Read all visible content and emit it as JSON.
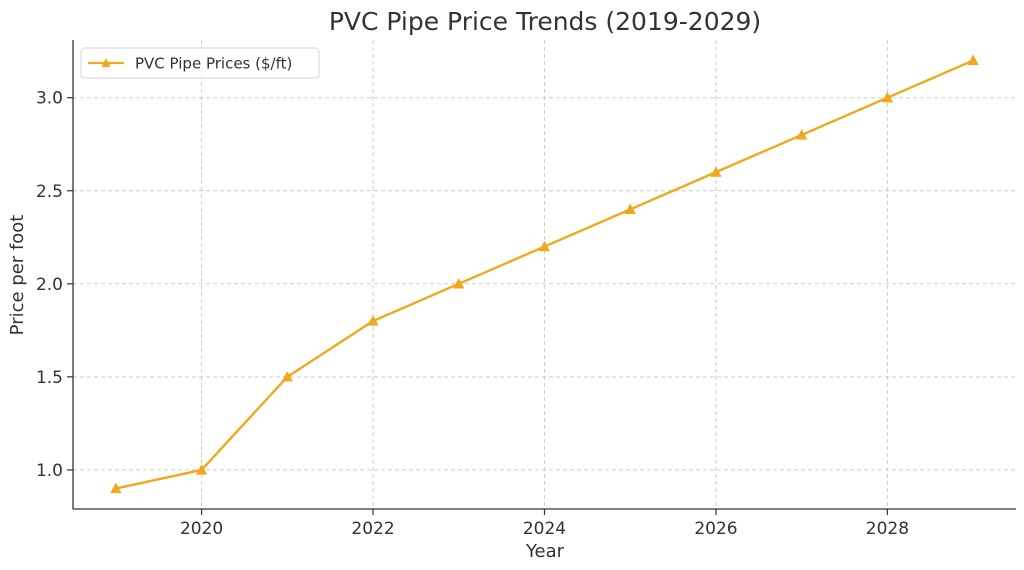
{
  "chart_data": {
    "type": "line",
    "title": "PVC Pipe Price Trends (2019-2029)",
    "xlabel": "Year",
    "ylabel": "Price per foot",
    "x": [
      2019,
      2020,
      2021,
      2022,
      2023,
      2024,
      2025,
      2026,
      2027,
      2028,
      2029
    ],
    "series": [
      {
        "name": "PVC Pipe Prices ($/ft)",
        "values": [
          0.9,
          1.0,
          1.5,
          1.8,
          2.0,
          2.2,
          2.4,
          2.6,
          2.8,
          3.0,
          3.2
        ],
        "color": "#f0a81c",
        "marker": "triangle-up"
      }
    ],
    "xticks": [
      2020,
      2022,
      2024,
      2026,
      2028
    ],
    "yticks": [
      1.0,
      1.5,
      2.0,
      2.5,
      3.0
    ],
    "ytick_labels": [
      "1.0",
      "1.5",
      "2.0",
      "2.5",
      "3.0"
    ],
    "xlim": [
      2018.5,
      2029.5
    ],
    "ylim": [
      0.79,
      3.31
    ],
    "grid": true,
    "legend_position": "top-left"
  }
}
